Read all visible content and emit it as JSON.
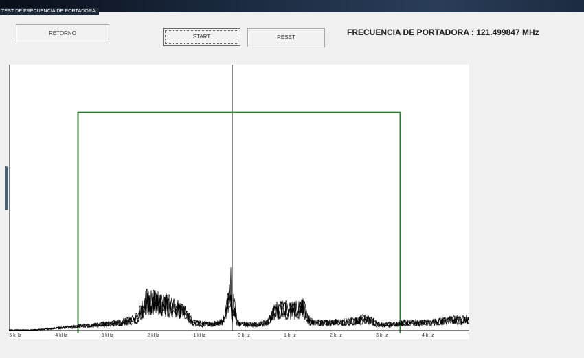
{
  "window": {
    "title": "TEST DE FRECUENCIA DE PORTADORA"
  },
  "toolbar": {
    "return_label": "RETORNO",
    "start_label": "START",
    "reset_label": "RESET"
  },
  "carrier": {
    "text": "FRECUENCIA DE PORTADORA : 121.499847 MHz"
  },
  "colors": {
    "trace": "#000000",
    "mask": "#2e7d32",
    "center_line": "#000000"
  },
  "chart_data": {
    "type": "line",
    "title": "",
    "xlabel": "",
    "ylabel": "",
    "x_unit": "kHz",
    "xlim": [
      -5,
      5
    ],
    "ylim": [
      0,
      1
    ],
    "tick_labels": [
      "-5 kHz",
      "-4 kHz",
      "-3 kHz",
      "-2 kHz",
      "-1 kHz",
      "0 kHz",
      "1 kHz",
      "2 kHz",
      "3 kHz",
      "4 kHz"
    ],
    "tick_values": [
      -5,
      -4,
      -3,
      -2,
      -1,
      0,
      1,
      2,
      3,
      4
    ],
    "mask": {
      "x": [
        -3.5,
        3.5
      ],
      "level": 0.82
    },
    "center_marker_x": -0.15,
    "spectrum": {
      "x": [
        -5,
        -4.5,
        -4,
        -3.5,
        -3,
        -2.6,
        -2.4,
        -2.2,
        -2.0,
        -1.8,
        -1.6,
        -1.4,
        -1.2,
        -1.0,
        -0.6,
        -0.35,
        -0.25,
        -0.18,
        -0.15,
        -0.12,
        -0.05,
        0.0,
        0.4,
        0.6,
        0.8,
        1.0,
        1.2,
        1.4,
        1.5,
        1.6,
        2.0,
        2.5,
        2.7,
        2.9,
        3.0,
        3.3,
        3.6,
        4.0,
        4.5,
        5.0
      ],
      "y": [
        0.0,
        0.0,
        0.01,
        0.02,
        0.03,
        0.04,
        0.05,
        0.07,
        0.16,
        0.15,
        0.14,
        0.12,
        0.1,
        0.04,
        0.03,
        0.05,
        0.14,
        0.25,
        0.02,
        0.15,
        0.05,
        0.03,
        0.03,
        0.04,
        0.11,
        0.11,
        0.11,
        0.12,
        0.06,
        0.04,
        0.04,
        0.05,
        0.06,
        0.05,
        0.03,
        0.03,
        0.04,
        0.04,
        0.05,
        0.06
      ]
    }
  }
}
